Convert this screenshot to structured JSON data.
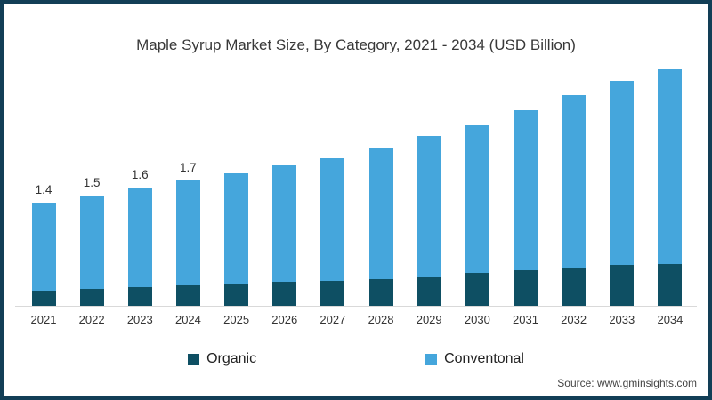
{
  "frame": {
    "border_color": "#123e56",
    "background_color": "#ffffff"
  },
  "chart_data": {
    "type": "bar",
    "stacked": true,
    "title": "Maple Syrup Market Size, By Category, 2021 - 2034 (USD Billion)",
    "categories": [
      "2021",
      "2022",
      "2023",
      "2024",
      "2025",
      "2026",
      "2027",
      "2028",
      "2029",
      "2030",
      "2031",
      "2032",
      "2033",
      "2034"
    ],
    "series": [
      {
        "name": "Organic",
        "color": "#0e4f63",
        "values": [
          0.21,
          0.23,
          0.25,
          0.28,
          0.3,
          0.32,
          0.34,
          0.36,
          0.39,
          0.44,
          0.48,
          0.52,
          0.55,
          0.57
        ]
      },
      {
        "name": "Conventonal",
        "color": "#45a6dc",
        "values": [
          1.19,
          1.27,
          1.35,
          1.42,
          1.5,
          1.58,
          1.66,
          1.79,
          1.91,
          2.01,
          2.17,
          2.33,
          2.5,
          2.63
        ]
      }
    ],
    "totals": [
      1.4,
      1.5,
      1.6,
      1.7,
      1.8,
      1.9,
      2.0,
      2.15,
      2.3,
      2.45,
      2.65,
      2.85,
      3.05,
      3.2
    ],
    "data_labels": [
      "1.4",
      "1.5",
      "1.6",
      "1.7",
      "",
      "",
      "",
      "",
      "",
      "",
      "",
      "",
      "",
      ""
    ],
    "xlabel": "",
    "ylabel": "",
    "ylim": [
      0,
      3.4
    ],
    "y_axis": "hidden",
    "grid": false,
    "legend_position": "bottom"
  },
  "source": {
    "text": "Source: www.gminsights.com"
  }
}
